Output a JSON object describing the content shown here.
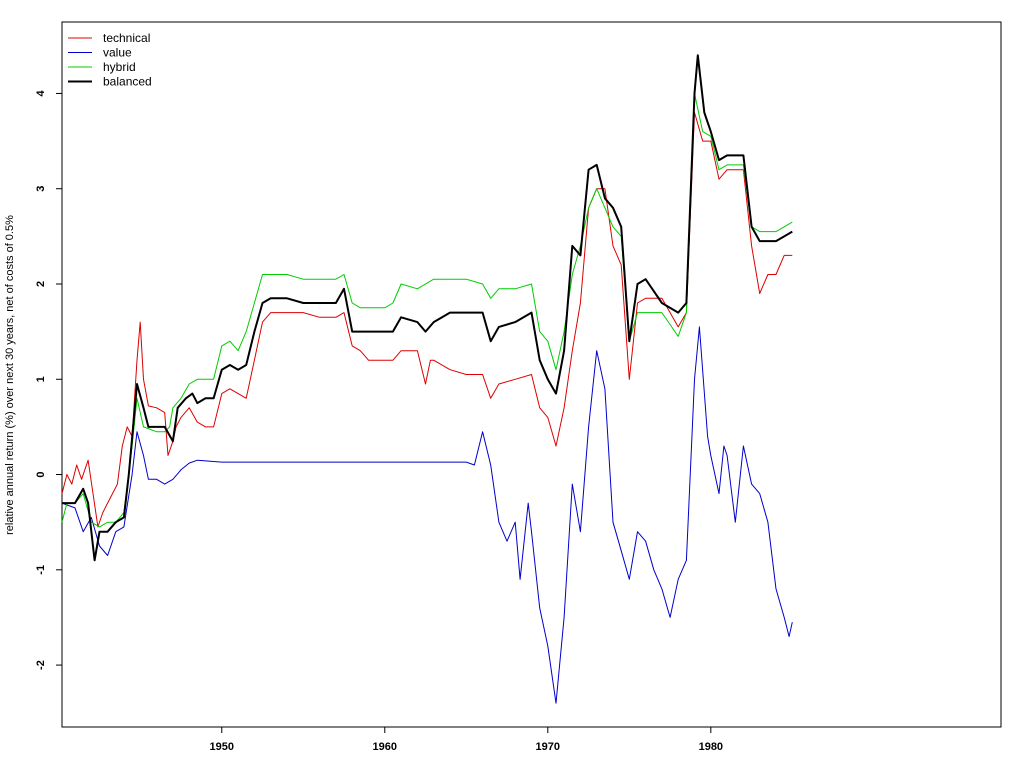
{
  "chart_data": {
    "type": "line",
    "title": "",
    "xlabel": "",
    "ylabel": "relative annual return (%) over next 30 years, net of costs of 0.5%",
    "xlim": [
      1940.2,
      1997.8
    ],
    "ylim": [
      -2.65,
      4.75
    ],
    "x_ticks": [
      1950,
      1960,
      1970,
      1980
    ],
    "y_ticks": [
      -2,
      -1,
      0,
      1,
      2,
      3,
      4
    ],
    "grid": false,
    "legend_position": "top-left",
    "series": [
      {
        "name": "technical",
        "color": "#dd0000",
        "width": 1,
        "points": [
          [
            1940.2,
            -0.2
          ],
          [
            1940.5,
            0.0
          ],
          [
            1940.8,
            -0.1
          ],
          [
            1941.1,
            0.1
          ],
          [
            1941.4,
            -0.05
          ],
          [
            1941.8,
            0.15
          ],
          [
            1942.1,
            -0.2
          ],
          [
            1942.4,
            -0.55
          ],
          [
            1942.7,
            -0.4
          ],
          [
            1943.0,
            -0.3
          ],
          [
            1943.3,
            -0.2
          ],
          [
            1943.6,
            -0.1
          ],
          [
            1943.9,
            0.3
          ],
          [
            1944.2,
            0.5
          ],
          [
            1944.5,
            0.4
          ],
          [
            1944.8,
            1.2
          ],
          [
            1945.0,
            1.6
          ],
          [
            1945.2,
            1.0
          ],
          [
            1945.5,
            0.72
          ],
          [
            1946.0,
            0.7
          ],
          [
            1946.5,
            0.65
          ],
          [
            1946.7,
            0.2
          ],
          [
            1947.0,
            0.35
          ],
          [
            1947.2,
            0.5
          ],
          [
            1947.5,
            0.6
          ],
          [
            1948.0,
            0.7
          ],
          [
            1948.5,
            0.55
          ],
          [
            1949.0,
            0.5
          ],
          [
            1949.5,
            0.5
          ],
          [
            1950.0,
            0.85
          ],
          [
            1950.5,
            0.9
          ],
          [
            1951.0,
            0.85
          ],
          [
            1951.5,
            0.8
          ],
          [
            1952.0,
            1.2
          ],
          [
            1952.5,
            1.6
          ],
          [
            1953.0,
            1.7
          ],
          [
            1954.0,
            1.7
          ],
          [
            1955.0,
            1.7
          ],
          [
            1956.0,
            1.65
          ],
          [
            1957.0,
            1.65
          ],
          [
            1957.5,
            1.7
          ],
          [
            1958.0,
            1.35
          ],
          [
            1958.5,
            1.3
          ],
          [
            1959.0,
            1.2
          ],
          [
            1960.0,
            1.2
          ],
          [
            1960.5,
            1.2
          ],
          [
            1961.0,
            1.3
          ],
          [
            1961.5,
            1.3
          ],
          [
            1962.0,
            1.3
          ],
          [
            1962.5,
            0.95
          ],
          [
            1962.8,
            1.2
          ],
          [
            1963.0,
            1.2
          ],
          [
            1964.0,
            1.1
          ],
          [
            1965.0,
            1.05
          ],
          [
            1966.0,
            1.05
          ],
          [
            1966.5,
            0.8
          ],
          [
            1967.0,
            0.95
          ],
          [
            1968.0,
            1.0
          ],
          [
            1969.0,
            1.05
          ],
          [
            1969.5,
            0.7
          ],
          [
            1970.0,
            0.6
          ],
          [
            1970.5,
            0.3
          ],
          [
            1971.0,
            0.7
          ],
          [
            1971.5,
            1.3
          ],
          [
            1972.0,
            1.8
          ],
          [
            1972.5,
            2.8
          ],
          [
            1973.0,
            3.0
          ],
          [
            1973.5,
            3.0
          ],
          [
            1974.0,
            2.4
          ],
          [
            1974.5,
            2.2
          ],
          [
            1975.0,
            1.0
          ],
          [
            1975.5,
            1.8
          ],
          [
            1976.0,
            1.85
          ],
          [
            1977.0,
            1.85
          ],
          [
            1978.0,
            1.55
          ],
          [
            1978.5,
            1.7
          ],
          [
            1979.0,
            3.8
          ],
          [
            1979.5,
            3.5
          ],
          [
            1980.0,
            3.5
          ],
          [
            1980.5,
            3.1
          ],
          [
            1981.0,
            3.2
          ],
          [
            1982.0,
            3.2
          ],
          [
            1982.5,
            2.4
          ],
          [
            1983.0,
            1.9
          ],
          [
            1983.5,
            2.1
          ],
          [
            1984.0,
            2.1
          ],
          [
            1984.5,
            2.3
          ],
          [
            1985.0,
            2.3
          ]
        ]
      },
      {
        "name": "value",
        "color": "#0000cc",
        "width": 1,
        "points": [
          [
            1940.2,
            -0.3
          ],
          [
            1941.0,
            -0.35
          ],
          [
            1941.5,
            -0.6
          ],
          [
            1942.0,
            -0.45
          ],
          [
            1942.5,
            -0.75
          ],
          [
            1943.0,
            -0.85
          ],
          [
            1943.5,
            -0.6
          ],
          [
            1944.0,
            -0.55
          ],
          [
            1944.5,
            0.0
          ],
          [
            1944.8,
            0.45
          ],
          [
            1945.2,
            0.2
          ],
          [
            1945.5,
            -0.05
          ],
          [
            1946.0,
            -0.05
          ],
          [
            1946.5,
            -0.1
          ],
          [
            1947.0,
            -0.05
          ],
          [
            1947.5,
            0.05
          ],
          [
            1948.0,
            0.12
          ],
          [
            1948.5,
            0.15
          ],
          [
            1950.0,
            0.13
          ],
          [
            1955.0,
            0.13
          ],
          [
            1960.0,
            0.13
          ],
          [
            1965.0,
            0.13
          ],
          [
            1965.5,
            0.1
          ],
          [
            1966.0,
            0.45
          ],
          [
            1966.5,
            0.1
          ],
          [
            1967.0,
            -0.5
          ],
          [
            1967.5,
            -0.7
          ],
          [
            1968.0,
            -0.5
          ],
          [
            1968.3,
            -1.1
          ],
          [
            1968.8,
            -0.3
          ],
          [
            1969.0,
            -0.6
          ],
          [
            1969.5,
            -1.4
          ],
          [
            1970.0,
            -1.8
          ],
          [
            1970.5,
            -2.4
          ],
          [
            1971.0,
            -1.5
          ],
          [
            1971.5,
            -0.1
          ],
          [
            1972.0,
            -0.6
          ],
          [
            1972.5,
            0.5
          ],
          [
            1973.0,
            1.3
          ],
          [
            1973.5,
            0.9
          ],
          [
            1974.0,
            -0.5
          ],
          [
            1974.5,
            -0.8
          ],
          [
            1975.0,
            -1.1
          ],
          [
            1975.5,
            -0.6
          ],
          [
            1976.0,
            -0.7
          ],
          [
            1976.5,
            -1.0
          ],
          [
            1977.0,
            -1.2
          ],
          [
            1977.5,
            -1.5
          ],
          [
            1978.0,
            -1.1
          ],
          [
            1978.5,
            -0.9
          ],
          [
            1979.0,
            1.0
          ],
          [
            1979.3,
            1.55
          ],
          [
            1979.8,
            0.4
          ],
          [
            1980.0,
            0.2
          ],
          [
            1980.5,
            -0.2
          ],
          [
            1980.8,
            0.3
          ],
          [
            1981.0,
            0.2
          ],
          [
            1981.5,
            -0.5
          ],
          [
            1982.0,
            0.3
          ],
          [
            1982.5,
            -0.1
          ],
          [
            1983.0,
            -0.2
          ],
          [
            1983.5,
            -0.5
          ],
          [
            1984.0,
            -1.2
          ],
          [
            1984.5,
            -1.5
          ],
          [
            1984.8,
            -1.7
          ],
          [
            1985.0,
            -1.55
          ]
        ]
      },
      {
        "name": "hybrid",
        "color": "#00cc00",
        "width": 1,
        "points": [
          [
            1940.2,
            -0.5
          ],
          [
            1940.5,
            -0.3
          ],
          [
            1941.0,
            -0.3
          ],
          [
            1941.5,
            -0.2
          ],
          [
            1942.0,
            -0.5
          ],
          [
            1942.5,
            -0.55
          ],
          [
            1943.0,
            -0.5
          ],
          [
            1943.5,
            -0.5
          ],
          [
            1944.0,
            -0.4
          ],
          [
            1944.5,
            0.3
          ],
          [
            1944.8,
            0.8
          ],
          [
            1945.2,
            0.5
          ],
          [
            1946.0,
            0.45
          ],
          [
            1946.5,
            0.45
          ],
          [
            1946.8,
            0.5
          ],
          [
            1947.0,
            0.7
          ],
          [
            1947.5,
            0.8
          ],
          [
            1948.0,
            0.95
          ],
          [
            1948.5,
            1.0
          ],
          [
            1949.0,
            1.0
          ],
          [
            1949.5,
            1.0
          ],
          [
            1950.0,
            1.35
          ],
          [
            1950.5,
            1.4
          ],
          [
            1951.0,
            1.3
          ],
          [
            1951.5,
            1.5
          ],
          [
            1952.0,
            1.8
          ],
          [
            1952.5,
            2.1
          ],
          [
            1953.0,
            2.1
          ],
          [
            1954.0,
            2.1
          ],
          [
            1955.0,
            2.05
          ],
          [
            1956.0,
            2.05
          ],
          [
            1957.0,
            2.05
          ],
          [
            1957.5,
            2.1
          ],
          [
            1958.0,
            1.8
          ],
          [
            1958.5,
            1.75
          ],
          [
            1959.0,
            1.75
          ],
          [
            1960.0,
            1.75
          ],
          [
            1960.5,
            1.8
          ],
          [
            1961.0,
            2.0
          ],
          [
            1962.0,
            1.95
          ],
          [
            1963.0,
            2.05
          ],
          [
            1964.0,
            2.05
          ],
          [
            1965.0,
            2.05
          ],
          [
            1966.0,
            2.0
          ],
          [
            1966.5,
            1.85
          ],
          [
            1967.0,
            1.95
          ],
          [
            1968.0,
            1.95
          ],
          [
            1969.0,
            2.0
          ],
          [
            1969.5,
            1.5
          ],
          [
            1970.0,
            1.4
          ],
          [
            1970.5,
            1.1
          ],
          [
            1971.0,
            1.5
          ],
          [
            1971.5,
            2.1
          ],
          [
            1972.0,
            2.4
          ],
          [
            1972.5,
            2.8
          ],
          [
            1973.0,
            3.0
          ],
          [
            1973.5,
            2.8
          ],
          [
            1974.0,
            2.6
          ],
          [
            1974.5,
            2.5
          ],
          [
            1975.0,
            1.4
          ],
          [
            1975.5,
            1.7
          ],
          [
            1976.0,
            1.7
          ],
          [
            1977.0,
            1.7
          ],
          [
            1978.0,
            1.45
          ],
          [
            1978.5,
            1.7
          ],
          [
            1979.0,
            4.0
          ],
          [
            1979.5,
            3.6
          ],
          [
            1980.0,
            3.55
          ],
          [
            1980.5,
            3.2
          ],
          [
            1981.0,
            3.25
          ],
          [
            1982.0,
            3.25
          ],
          [
            1982.5,
            2.6
          ],
          [
            1983.0,
            2.55
          ],
          [
            1984.0,
            2.55
          ],
          [
            1984.5,
            2.6
          ],
          [
            1985.0,
            2.65
          ]
        ]
      },
      {
        "name": "balanced",
        "color": "#000000",
        "width": 2,
        "points": [
          [
            1940.2,
            -0.3
          ],
          [
            1940.5,
            -0.3
          ],
          [
            1941.0,
            -0.3
          ],
          [
            1941.5,
            -0.15
          ],
          [
            1941.8,
            -0.3
          ],
          [
            1942.2,
            -0.9
          ],
          [
            1942.5,
            -0.6
          ],
          [
            1943.0,
            -0.6
          ],
          [
            1943.5,
            -0.5
          ],
          [
            1944.0,
            -0.45
          ],
          [
            1944.3,
            0.0
          ],
          [
            1944.8,
            0.95
          ],
          [
            1945.2,
            0.7
          ],
          [
            1945.5,
            0.5
          ],
          [
            1946.0,
            0.5
          ],
          [
            1946.5,
            0.5
          ],
          [
            1947.0,
            0.35
          ],
          [
            1947.3,
            0.7
          ],
          [
            1947.8,
            0.8
          ],
          [
            1948.2,
            0.85
          ],
          [
            1948.5,
            0.75
          ],
          [
            1949.0,
            0.8
          ],
          [
            1949.5,
            0.8
          ],
          [
            1950.0,
            1.1
          ],
          [
            1950.5,
            1.15
          ],
          [
            1951.0,
            1.1
          ],
          [
            1951.5,
            1.15
          ],
          [
            1952.0,
            1.5
          ],
          [
            1952.5,
            1.8
          ],
          [
            1953.0,
            1.85
          ],
          [
            1954.0,
            1.85
          ],
          [
            1955.0,
            1.8
          ],
          [
            1956.0,
            1.8
          ],
          [
            1957.0,
            1.8
          ],
          [
            1957.5,
            1.95
          ],
          [
            1958.0,
            1.5
          ],
          [
            1959.0,
            1.5
          ],
          [
            1960.0,
            1.5
          ],
          [
            1960.5,
            1.5
          ],
          [
            1961.0,
            1.65
          ],
          [
            1962.0,
            1.6
          ],
          [
            1962.5,
            1.5
          ],
          [
            1963.0,
            1.6
          ],
          [
            1964.0,
            1.7
          ],
          [
            1965.0,
            1.7
          ],
          [
            1966.0,
            1.7
          ],
          [
            1966.5,
            1.4
          ],
          [
            1967.0,
            1.55
          ],
          [
            1968.0,
            1.6
          ],
          [
            1969.0,
            1.7
          ],
          [
            1969.5,
            1.2
          ],
          [
            1970.0,
            1.0
          ],
          [
            1970.5,
            0.85
          ],
          [
            1971.0,
            1.3
          ],
          [
            1971.5,
            2.4
          ],
          [
            1972.0,
            2.3
          ],
          [
            1972.5,
            3.2
          ],
          [
            1973.0,
            3.25
          ],
          [
            1973.5,
            2.9
          ],
          [
            1974.0,
            2.8
          ],
          [
            1974.5,
            2.6
          ],
          [
            1975.0,
            1.4
          ],
          [
            1975.5,
            2.0
          ],
          [
            1976.0,
            2.05
          ],
          [
            1977.0,
            1.8
          ],
          [
            1978.0,
            1.7
          ],
          [
            1978.5,
            1.8
          ],
          [
            1979.0,
            4.0
          ],
          [
            1979.2,
            4.4
          ],
          [
            1979.6,
            3.8
          ],
          [
            1980.0,
            3.6
          ],
          [
            1980.5,
            3.3
          ],
          [
            1981.0,
            3.35
          ],
          [
            1982.0,
            3.35
          ],
          [
            1982.5,
            2.6
          ],
          [
            1983.0,
            2.45
          ],
          [
            1984.0,
            2.45
          ],
          [
            1984.5,
            2.5
          ],
          [
            1985.0,
            2.55
          ]
        ]
      }
    ]
  }
}
